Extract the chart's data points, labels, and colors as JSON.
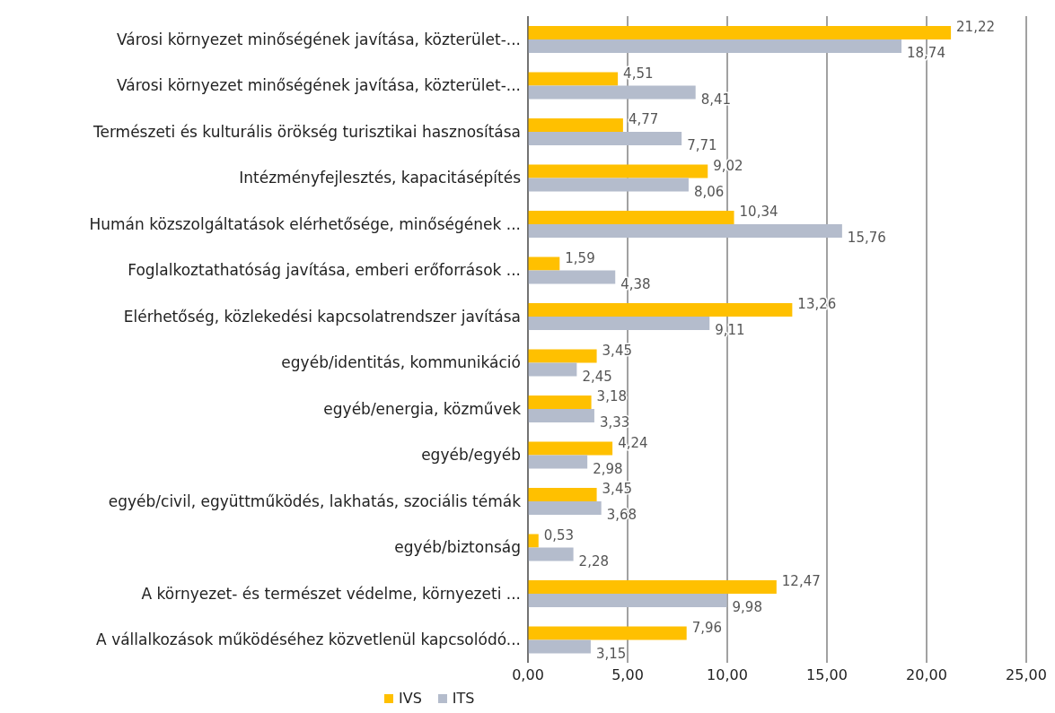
{
  "chart_data": {
    "type": "bar",
    "orientation": "horizontal",
    "categories": [
      "Városi környezet minőségének javítása, közterület-...",
      "Városi környezet minőségének javítása, közterület-...",
      "Természeti és kulturális örökség turisztikai hasznosítása",
      "Intézményfejlesztés, kapacitásépítés",
      "Humán közszolgáltatások elérhetősége, minőségének ...",
      "Foglalkoztathatóság javítása, emberi erőforrások ...",
      "Elérhetőség, közlekedési kapcsolatrendszer javítása",
      "egyéb/identitás, kommunikáció",
      "egyéb/energia, közművek",
      "egyéb/egyéb",
      "egyéb/civil, együttműködés, lakhatás, szociális témák",
      "egyéb/biztonság",
      "A környezet- és természet védelme, környezeti ...",
      "A vállalkozások működéséhez közvetlenül kapcsolódó..."
    ],
    "series": [
      {
        "name": "IVS",
        "color": "#ffc000",
        "values": [
          21.22,
          4.51,
          4.77,
          9.02,
          10.34,
          1.59,
          13.26,
          3.45,
          3.18,
          4.24,
          3.45,
          0.53,
          12.47,
          7.96
        ],
        "value_labels": [
          "21,22",
          "4,51",
          "4,77",
          "9,02",
          "10,34",
          "1,59",
          "13,26",
          "3,45",
          "3,18",
          "4,24",
          "3,45",
          "0,53",
          "12,47",
          "7,96"
        ]
      },
      {
        "name": "ITS",
        "color": "#b4bccc",
        "values": [
          18.74,
          8.41,
          7.71,
          8.06,
          15.76,
          4.38,
          9.11,
          2.45,
          3.33,
          2.98,
          3.68,
          2.28,
          9.98,
          3.15
        ],
        "value_labels": [
          "18,74",
          "8,41",
          "7,71",
          "8,06",
          "15,76",
          "4,38",
          "9,11",
          "2,45",
          "3,33",
          "2,98",
          "3,68",
          "2,28",
          "9,98",
          "3,15"
        ]
      }
    ],
    "xlim": [
      0,
      25
    ],
    "xticks": [
      {
        "value": 0,
        "label": "0,00"
      },
      {
        "value": 5,
        "label": "5,00"
      },
      {
        "value": 10,
        "label": "10,00"
      },
      {
        "value": 15,
        "label": "15,00"
      },
      {
        "value": 20,
        "label": "20,00"
      },
      {
        "value": 25,
        "label": "25,00"
      }
    ],
    "grid": "x",
    "legend": "bottom left"
  }
}
